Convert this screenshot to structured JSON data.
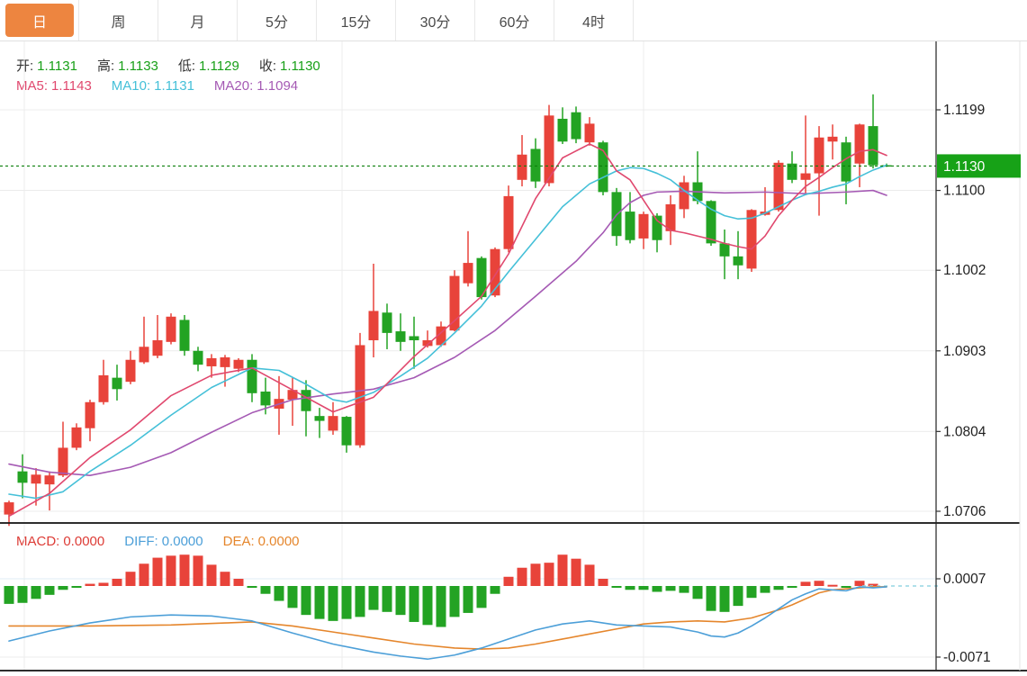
{
  "tabs": {
    "items": [
      {
        "label": "日",
        "active": true
      },
      {
        "label": "周",
        "active": false
      },
      {
        "label": "月",
        "active": false
      },
      {
        "label": "5分",
        "active": false
      },
      {
        "label": "15分",
        "active": false
      },
      {
        "label": "30分",
        "active": false
      },
      {
        "label": "60分",
        "active": false
      },
      {
        "label": "4时",
        "active": false
      }
    ],
    "active_color": "#ed8540"
  },
  "legend": {
    "ohlc": [
      {
        "label": "开:",
        "value": "1.1131"
      },
      {
        "label": "高:",
        "value": "1.1133"
      },
      {
        "label": "低:",
        "value": "1.1129"
      },
      {
        "label": "收:",
        "value": "1.1130"
      }
    ],
    "ohlc_label_color": "#333333",
    "ohlc_value_color": "#18a018",
    "ma": [
      {
        "label": "MA5:",
        "value": "1.1143",
        "color": "#e0486e"
      },
      {
        "label": "MA10:",
        "value": "1.1131",
        "color": "#45c0d8"
      },
      {
        "label": "MA20:",
        "value": "1.1094",
        "color": "#a55ab4"
      }
    ],
    "macd": [
      {
        "label": "MACD:",
        "value": "0.0000",
        "color": "#dd3c36"
      },
      {
        "label": "DIFF:",
        "value": "0.0000",
        "color": "#4c9fd8"
      },
      {
        "label": "DEA:",
        "value": "0.0000",
        "color": "#e5862c"
      }
    ]
  },
  "colors": {
    "up": "#e8433a",
    "down": "#23a323",
    "ma5": "#e0486e",
    "ma10": "#45c0d8",
    "ma20": "#a55ab4",
    "diff": "#4c9fd8",
    "dea": "#e5862c",
    "current_price_line": "#0c800c",
    "price_tag_bg": "#17a217",
    "grid": "#ececec",
    "macd_zero_dash": "#96d6e4",
    "axis_line": "#222222",
    "tick_text": "#1f1f1f"
  },
  "chart_data": {
    "type": "candlestick+macd",
    "timeframe": "日",
    "legend_last": {
      "open": 1.1131,
      "high": 1.1133,
      "low": 1.1129,
      "close": 1.113
    },
    "price_axis": {
      "ticks": [
        1.1199,
        1.11,
        1.1002,
        1.0903,
        1.0804,
        1.0706
      ],
      "current_price": 1.113,
      "current_price_label": "1.1130"
    },
    "grid": {
      "vertical_x": [
        27,
        380,
        715
      ]
    },
    "candles": [
      [
        1.0702,
        1.0719,
        1.0688,
        1.0717
      ],
      [
        1.0755,
        1.0776,
        1.0722,
        1.0741
      ],
      [
        1.074,
        1.0759,
        1.0713,
        1.0751
      ],
      [
        1.0739,
        1.0755,
        1.0707,
        1.075
      ],
      [
        1.075,
        1.0816,
        1.0748,
        1.0784
      ],
      [
        1.0784,
        1.0814,
        1.0781,
        1.0809
      ],
      [
        1.0808,
        1.0843,
        1.0792,
        1.084
      ],
      [
        1.084,
        1.0892,
        1.0837,
        1.0873
      ],
      [
        1.087,
        1.0886,
        1.0842,
        1.0856
      ],
      [
        1.0865,
        1.0903,
        1.0862,
        1.0892
      ],
      [
        1.0889,
        1.0945,
        1.0887,
        1.0908
      ],
      [
        1.0897,
        1.0947,
        1.0894,
        1.0916
      ],
      [
        1.0914,
        1.0949,
        1.0911,
        1.0945
      ],
      [
        1.0941,
        1.0947,
        1.0897,
        1.0903
      ],
      [
        1.0903,
        1.0908,
        1.0878,
        1.0886
      ],
      [
        1.0884,
        1.0899,
        1.087,
        1.0894
      ],
      [
        1.0883,
        1.0898,
        1.0859,
        1.0895
      ],
      [
        1.0881,
        1.0894,
        1.0877,
        1.0892
      ],
      [
        1.0892,
        1.0899,
        1.084,
        1.0851
      ],
      [
        1.0853,
        1.087,
        1.0825,
        1.0836
      ],
      [
        1.0832,
        1.0872,
        1.08,
        1.0844
      ],
      [
        1.0843,
        1.087,
        1.0811,
        1.0855
      ],
      [
        1.0855,
        1.0867,
        1.0798,
        1.0829
      ],
      [
        1.0823,
        1.0833,
        1.0796,
        1.0817
      ],
      [
        1.0805,
        1.084,
        1.08,
        1.0823
      ],
      [
        1.0822,
        1.0823,
        1.0778,
        1.0787
      ],
      [
        1.0787,
        1.0925,
        1.0784,
        1.091
      ],
      [
        1.0916,
        1.101,
        1.0895,
        1.0952
      ],
      [
        1.095,
        1.0961,
        1.0905,
        1.0925
      ],
      [
        1.0927,
        1.0949,
        1.0903,
        1.0914
      ],
      [
        1.0921,
        1.0945,
        1.0881,
        1.0916
      ],
      [
        1.0909,
        1.0928,
        1.0907,
        1.0916
      ],
      [
        1.091,
        1.0939,
        1.0908,
        1.0933
      ],
      [
        1.0928,
        1.1002,
        1.0927,
        1.0995
      ],
      [
        1.0986,
        1.105,
        1.0982,
        1.1011
      ],
      [
        1.1017,
        1.1019,
        1.0966,
        1.0969
      ],
      [
        1.0971,
        1.103,
        1.0969,
        1.1028
      ],
      [
        1.1028,
        1.1106,
        1.1024,
        1.1093
      ],
      [
        1.1113,
        1.1168,
        1.1105,
        1.1144
      ],
      [
        1.1151,
        1.1164,
        1.1103,
        1.1111
      ],
      [
        1.1109,
        1.1205,
        1.1105,
        1.1192
      ],
      [
        1.1188,
        1.1202,
        1.1157,
        1.116
      ],
      [
        1.1196,
        1.1203,
        1.1158,
        1.1163
      ],
      [
        1.1159,
        1.119,
        1.1155,
        1.1182
      ],
      [
        1.1159,
        1.1161,
        1.1094,
        1.1098
      ],
      [
        1.1098,
        1.1103,
        1.1032,
        1.1044
      ],
      [
        1.1074,
        1.1098,
        1.1035,
        1.1039
      ],
      [
        1.1041,
        1.1074,
        1.1028,
        1.1071
      ],
      [
        1.1069,
        1.1072,
        1.1024,
        1.1039
      ],
      [
        1.105,
        1.1094,
        1.1033,
        1.1083
      ],
      [
        1.1077,
        1.1118,
        1.1066,
        1.111
      ],
      [
        1.111,
        1.1148,
        1.1083,
        1.1087
      ],
      [
        1.1087,
        1.1088,
        1.1032,
        1.1035
      ],
      [
        1.1035,
        1.1052,
        1.0991,
        1.1019
      ],
      [
        1.1019,
        1.105,
        1.0991,
        1.1008
      ],
      [
        1.1004,
        1.1077,
        1.1,
        1.1076
      ],
      [
        1.107,
        1.1104,
        1.1069,
        1.1074
      ],
      [
        1.1076,
        1.1137,
        1.1074,
        1.1134
      ],
      [
        1.1133,
        1.1148,
        1.1109,
        1.1113
      ],
      [
        1.1113,
        1.1192,
        1.1094,
        1.1121
      ],
      [
        1.1121,
        1.1179,
        1.1069,
        1.1165
      ],
      [
        1.116,
        1.1181,
        1.1138,
        1.1166
      ],
      [
        1.1159,
        1.1166,
        1.1083,
        1.1111
      ],
      [
        1.1133,
        1.1182,
        1.1104,
        1.1181
      ],
      [
        1.1179,
        1.1218,
        1.1127,
        1.1131
      ],
      [
        1.1131,
        1.1133,
        1.1129,
        1.113
      ]
    ],
    "ma5": {
      "value": 1.1143,
      "points": [
        [
          0,
          1.07
        ],
        [
          3,
          1.0728
        ],
        [
          6,
          1.0772
        ],
        [
          9,
          1.0806
        ],
        [
          12,
          1.0848
        ],
        [
          15,
          1.0873
        ],
        [
          18,
          1.0882
        ],
        [
          21,
          1.0855
        ],
        [
          24,
          1.0828
        ],
        [
          27,
          1.0846
        ],
        [
          30,
          1.0896
        ],
        [
          33,
          1.094
        ],
        [
          35,
          1.097
        ],
        [
          37,
          1.1022
        ],
        [
          39,
          1.109
        ],
        [
          41,
          1.114
        ],
        [
          43,
          1.1157
        ],
        [
          44,
          1.1149
        ],
        [
          45,
          1.1124
        ],
        [
          46,
          1.1113
        ],
        [
          47,
          1.1088
        ],
        [
          48,
          1.1063
        ],
        [
          49,
          1.1051
        ],
        [
          50,
          1.1048
        ],
        [
          51,
          1.1044
        ],
        [
          52,
          1.104
        ],
        [
          53,
          1.1035
        ],
        [
          54,
          1.1031
        ],
        [
          55,
          1.1028
        ],
        [
          56,
          1.1044
        ],
        [
          57,
          1.1069
        ],
        [
          58,
          1.1088
        ],
        [
          59,
          1.1105
        ],
        [
          60,
          1.1116
        ],
        [
          61,
          1.1128
        ],
        [
          62,
          1.1139
        ],
        [
          63,
          1.1148
        ],
        [
          64,
          1.115
        ],
        [
          65,
          1.1143
        ]
      ]
    },
    "ma10": {
      "value": 1.1131,
      "points": [
        [
          0,
          1.0727
        ],
        [
          2,
          1.0722
        ],
        [
          4,
          1.073
        ],
        [
          6,
          1.0755
        ],
        [
          9,
          1.0787
        ],
        [
          12,
          1.0824
        ],
        [
          15,
          1.0858
        ],
        [
          18,
          1.0882
        ],
        [
          20,
          1.0879
        ],
        [
          22,
          1.0862
        ],
        [
          24,
          1.0843
        ],
        [
          25,
          1.084
        ],
        [
          27,
          1.0852
        ],
        [
          29,
          1.0872
        ],
        [
          31,
          1.0894
        ],
        [
          33,
          1.0925
        ],
        [
          35,
          1.0958
        ],
        [
          37,
          1.1
        ],
        [
          39,
          1.104
        ],
        [
          41,
          1.108
        ],
        [
          43,
          1.1108
        ],
        [
          45,
          1.1124
        ],
        [
          46,
          1.1128
        ],
        [
          47,
          1.1127
        ],
        [
          48,
          1.1121
        ],
        [
          49,
          1.1113
        ],
        [
          50,
          1.11
        ],
        [
          51,
          1.1088
        ],
        [
          52,
          1.1077
        ],
        [
          53,
          1.1069
        ],
        [
          54,
          1.1065
        ],
        [
          55,
          1.1066
        ],
        [
          56,
          1.1072
        ],
        [
          57,
          1.108
        ],
        [
          58,
          1.1088
        ],
        [
          59,
          1.1095
        ],
        [
          60,
          1.1099
        ],
        [
          61,
          1.1104
        ],
        [
          62,
          1.1108
        ],
        [
          63,
          1.1117
        ],
        [
          64,
          1.1125
        ],
        [
          65,
          1.1131
        ]
      ]
    },
    "ma20": {
      "value": 1.1094,
      "points": [
        [
          0,
          1.0764
        ],
        [
          3,
          1.0754
        ],
        [
          6,
          1.075
        ],
        [
          9,
          1.076
        ],
        [
          12,
          1.0778
        ],
        [
          15,
          1.0803
        ],
        [
          18,
          1.0827
        ],
        [
          21,
          1.0843
        ],
        [
          24,
          1.085
        ],
        [
          27,
          1.0856
        ],
        [
          30,
          1.087
        ],
        [
          33,
          1.0895
        ],
        [
          36,
          1.0928
        ],
        [
          39,
          1.097
        ],
        [
          42,
          1.1013
        ],
        [
          44,
          1.1048
        ],
        [
          45,
          1.107
        ],
        [
          46,
          1.1085
        ],
        [
          47,
          1.1094
        ],
        [
          48,
          1.1098
        ],
        [
          50,
          1.1099
        ],
        [
          53,
          1.1097
        ],
        [
          56,
          1.1098
        ],
        [
          59,
          1.1096
        ],
        [
          62,
          1.1098
        ],
        [
          64,
          1.11
        ],
        [
          65,
          1.1094
        ]
      ]
    },
    "macd": {
      "macd_value": 0.0,
      "diff_value": 0.0,
      "dea_value": 0.0,
      "axis_ticks": [
        0.0007,
        -0.0071
      ],
      "histogram": [
        -0.0018,
        -0.0017,
        -0.0013,
        -0.0009,
        -0.0004,
        -0.0002,
        0.0002,
        0.0003,
        0.0007,
        0.0014,
        0.0022,
        0.0028,
        0.003,
        0.0031,
        0.003,
        0.0021,
        0.0014,
        0.0007,
        -0.0002,
        -0.0008,
        -0.0015,
        -0.0022,
        -0.0029,
        -0.0033,
        -0.0035,
        -0.0033,
        -0.0031,
        -0.0024,
        -0.0026,
        -0.0029,
        -0.0036,
        -0.0039,
        -0.0041,
        -0.0031,
        -0.0027,
        -0.0022,
        -0.0008,
        0.0009,
        0.0018,
        0.0022,
        0.0023,
        0.0031,
        0.0027,
        0.0021,
        0.0007,
        -0.0001,
        -0.0004,
        -0.0004,
        -0.0006,
        -0.0005,
        -0.0007,
        -0.0013,
        -0.0025,
        -0.0026,
        -0.002,
        -0.0012,
        -0.0007,
        -0.0004,
        -0.0002,
        0.0004,
        0.0005,
        0.0001,
        -0.0001,
        0.0005,
        0.0002,
        0.0
      ],
      "diff_points": [
        [
          0,
          -0.0055
        ],
        [
          3,
          -0.0045
        ],
        [
          6,
          -0.0037
        ],
        [
          9,
          -0.0031
        ],
        [
          12,
          -0.0029
        ],
        [
          15,
          -0.003
        ],
        [
          18,
          -0.0035
        ],
        [
          21,
          -0.0047
        ],
        [
          24,
          -0.0058
        ],
        [
          27,
          -0.0066
        ],
        [
          29,
          -0.007
        ],
        [
          31,
          -0.0073
        ],
        [
          33,
          -0.0069
        ],
        [
          35,
          -0.0062
        ],
        [
          37,
          -0.0053
        ],
        [
          39,
          -0.0044
        ],
        [
          41,
          -0.0038
        ],
        [
          43,
          -0.0035
        ],
        [
          45,
          -0.0039
        ],
        [
          47,
          -0.004
        ],
        [
          49,
          -0.0041
        ],
        [
          51,
          -0.0046
        ],
        [
          52,
          -0.005
        ],
        [
          53,
          -0.0051
        ],
        [
          54,
          -0.0047
        ],
        [
          55,
          -0.004
        ],
        [
          56,
          -0.0032
        ],
        [
          57,
          -0.0023
        ],
        [
          58,
          -0.0014
        ],
        [
          59,
          -0.0008
        ],
        [
          60,
          -0.0003
        ],
        [
          61,
          -0.0004
        ],
        [
          62,
          -0.0005
        ],
        [
          63,
          -0.0001
        ],
        [
          64,
          -0.0002
        ],
        [
          65,
          -0.0001
        ]
      ],
      "dea_points": [
        [
          0,
          -0.004
        ],
        [
          6,
          -0.004
        ],
        [
          12,
          -0.0039
        ],
        [
          16,
          -0.0037
        ],
        [
          18,
          -0.0036
        ],
        [
          21,
          -0.004
        ],
        [
          24,
          -0.0046
        ],
        [
          27,
          -0.0052
        ],
        [
          30,
          -0.0058
        ],
        [
          33,
          -0.0062
        ],
        [
          35,
          -0.0063
        ],
        [
          37,
          -0.0062
        ],
        [
          39,
          -0.0058
        ],
        [
          41,
          -0.0053
        ],
        [
          43,
          -0.0048
        ],
        [
          45,
          -0.0043
        ],
        [
          47,
          -0.0038
        ],
        [
          49,
          -0.0036
        ],
        [
          51,
          -0.0035
        ],
        [
          53,
          -0.0036
        ],
        [
          55,
          -0.0032
        ],
        [
          56,
          -0.0028
        ],
        [
          57,
          -0.0024
        ],
        [
          58,
          -0.0019
        ],
        [
          59,
          -0.0013
        ],
        [
          60,
          -0.0007
        ],
        [
          61,
          -0.0004
        ],
        [
          62,
          -0.0003
        ],
        [
          63,
          -0.0002
        ],
        [
          64,
          -0.0001
        ],
        [
          65,
          -0.0001
        ]
      ]
    }
  }
}
